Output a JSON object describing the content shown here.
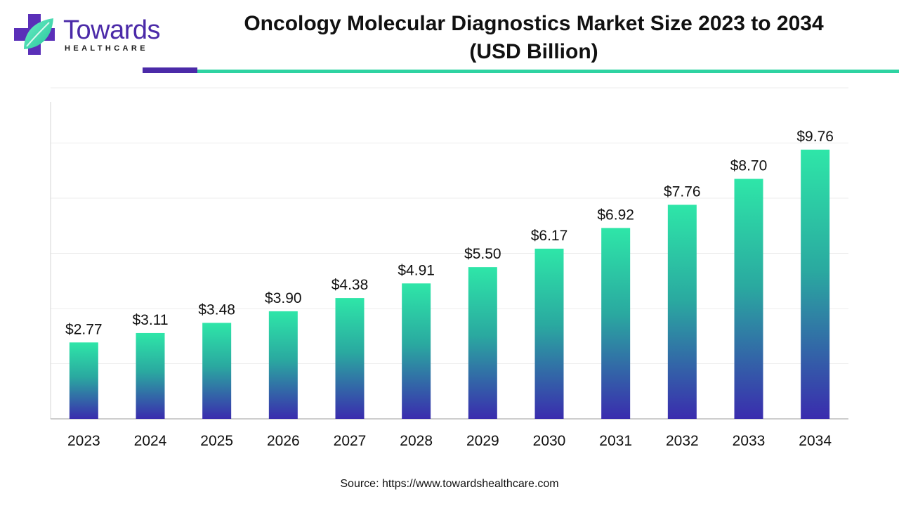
{
  "brand": {
    "name": "Towards",
    "sub": "HEALTHCARE",
    "primary_color": "#4b2aa8",
    "accent_color": "#2ed3a2",
    "icon": "cross-leaf-icon"
  },
  "header": {
    "title_line1": "Oncology Molecular Diagnostics Market Size 2023 to 2034",
    "title_line2": "(USD Billion)"
  },
  "chart_data": {
    "type": "bar",
    "categories": [
      "2023",
      "2024",
      "2025",
      "2026",
      "2027",
      "2028",
      "2029",
      "2030",
      "2031",
      "2032",
      "2033",
      "2034"
    ],
    "values": [
      2.77,
      3.11,
      3.48,
      3.9,
      4.38,
      4.91,
      5.5,
      6.17,
      6.92,
      7.76,
      8.7,
      9.76
    ],
    "value_labels": [
      "$2.77",
      "$3.11",
      "$3.48",
      "$3.90",
      "$4.38",
      "$4.91",
      "$5.50",
      "$6.17",
      "$6.92",
      "$7.76",
      "$8.70",
      "$9.76"
    ],
    "title": "Oncology Molecular Diagnostics Market Size 2023 to 2034 (USD Billion)",
    "xlabel": "",
    "ylabel": "",
    "ylim": [
      0,
      12
    ],
    "grid": true,
    "legend": "none",
    "bar_gradient": [
      "#2ee6a8",
      "#3a2cae"
    ]
  },
  "footer": {
    "source": "Source: https://www.towardshealthcare.com"
  }
}
